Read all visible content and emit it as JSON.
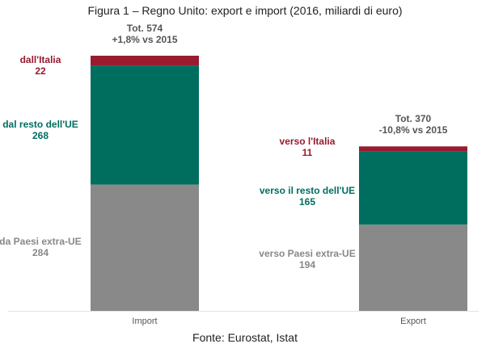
{
  "chart_data": {
    "type": "bar",
    "stacked": true,
    "title": "Figura 1 – Regno Unito: export e import (2016, miliardi di euro)",
    "source": "Fonte: Eurostat, Istat",
    "categories": [
      "Import",
      "Export"
    ],
    "ylim": [
      0,
      574
    ],
    "grid": false,
    "series": [
      {
        "key": "extra",
        "color": "#898989",
        "values": [
          284,
          194
        ],
        "labels": [
          [
            "da Paesi extra-UE",
            "284"
          ],
          [
            "verso Paesi extra-UE",
            "194"
          ]
        ]
      },
      {
        "key": "ue",
        "color": "#006E5F",
        "values": [
          268,
          165
        ],
        "labels": [
          [
            "dal resto dell'UE",
            "268"
          ],
          [
            "verso il resto dell'UE",
            "165"
          ]
        ]
      },
      {
        "key": "italia",
        "color": "#981B30",
        "values": [
          22,
          11
        ],
        "labels": [
          [
            "dall'Italia",
            "22"
          ],
          [
            "verso l'Italia",
            "11"
          ]
        ]
      }
    ],
    "totals": [
      {
        "line1": "Tot. 574",
        "line2": "+1,8% vs 2015"
      },
      {
        "line1": "Tot. 370",
        "line2": "-10,8% vs 2015"
      }
    ]
  }
}
